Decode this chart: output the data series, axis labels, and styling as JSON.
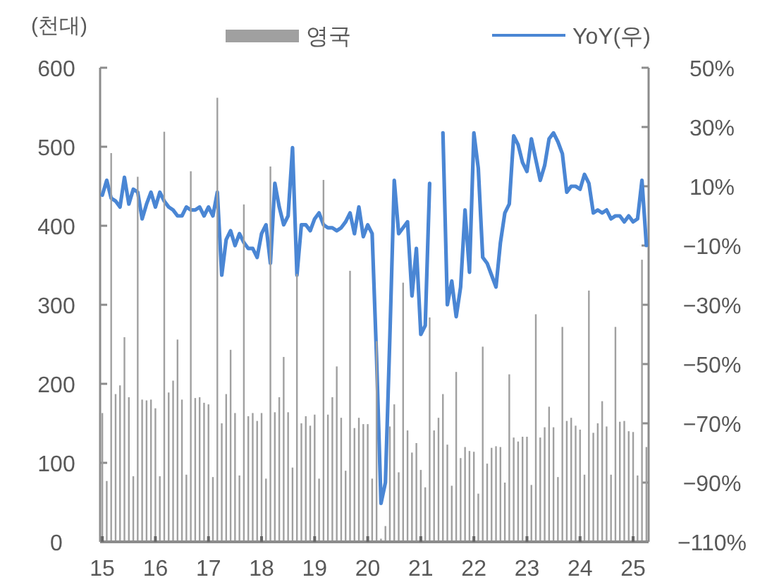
{
  "chart_data": {
    "type": "bar",
    "ylabel": "(천대)",
    "legend": "top",
    "grid": false,
    "x": [
      "2015-01",
      "2015-02",
      "2015-03",
      "2015-04",
      "2015-05",
      "2015-06",
      "2015-07",
      "2015-08",
      "2015-09",
      "2015-10",
      "2015-11",
      "2015-12",
      "2016-01",
      "2016-02",
      "2016-03",
      "2016-04",
      "2016-05",
      "2016-06",
      "2016-07",
      "2016-08",
      "2016-09",
      "2016-10",
      "2016-11",
      "2016-12",
      "2017-01",
      "2017-02",
      "2017-03",
      "2017-04",
      "2017-05",
      "2017-06",
      "2017-07",
      "2017-08",
      "2017-09",
      "2017-10",
      "2017-11",
      "2017-12",
      "2018-01",
      "2018-02",
      "2018-03",
      "2018-04",
      "2018-05",
      "2018-06",
      "2018-07",
      "2018-08",
      "2018-09",
      "2018-10",
      "2018-11",
      "2018-12",
      "2019-01",
      "2019-02",
      "2019-03",
      "2019-04",
      "2019-05",
      "2019-06",
      "2019-07",
      "2019-08",
      "2019-09",
      "2019-10",
      "2019-11",
      "2019-12",
      "2020-01",
      "2020-02",
      "2020-03",
      "2020-04",
      "2020-05",
      "2020-06",
      "2020-07",
      "2020-08",
      "2020-09",
      "2020-10",
      "2020-11",
      "2020-12",
      "2021-01",
      "2021-02",
      "2021-03",
      "2021-04",
      "2021-05",
      "2021-06",
      "2021-07",
      "2021-08",
      "2021-09",
      "2021-10",
      "2021-11",
      "2021-12",
      "2022-01",
      "2022-02",
      "2022-03",
      "2022-04",
      "2022-05",
      "2022-06",
      "2022-07",
      "2022-08",
      "2022-09",
      "2022-10",
      "2022-11",
      "2022-12",
      "2023-01",
      "2023-02",
      "2023-03",
      "2023-04",
      "2023-05",
      "2023-06",
      "2023-07",
      "2023-08",
      "2023-09",
      "2023-10",
      "2023-11",
      "2023-12",
      "2024-01",
      "2024-02",
      "2024-03",
      "2024-04",
      "2024-05",
      "2024-06",
      "2024-07",
      "2024-08",
      "2024-09",
      "2024-10",
      "2024-11",
      "2024-12",
      "2025-01",
      "2025-02",
      "2025-03",
      "2025-04"
    ],
    "xlim": [
      "2015-01",
      "2025-04"
    ],
    "xticks": [
      {
        "value": "2015-01",
        "label": "15"
      },
      {
        "value": "2016-01",
        "label": "16"
      },
      {
        "value": "2017-01",
        "label": "17"
      },
      {
        "value": "2018-01",
        "label": "18"
      },
      {
        "value": "2019-01",
        "label": "19"
      },
      {
        "value": "2020-01",
        "label": "20"
      },
      {
        "value": "2021-01",
        "label": "21"
      },
      {
        "value": "2022-01",
        "label": "22"
      },
      {
        "value": "2023-01",
        "label": "23"
      },
      {
        "value": "2024-01",
        "label": "24"
      },
      {
        "value": "2025-01",
        "label": "25"
      }
    ],
    "ylim": [
      0,
      600
    ],
    "yticks": [
      0,
      100,
      200,
      300,
      400,
      500,
      600
    ],
    "y2lim": [
      -110,
      50
    ],
    "y2ticks": [
      {
        "value": -110,
        "label": "−110%"
      },
      {
        "value": -90,
        "label": "−90%"
      },
      {
        "value": -70,
        "label": "−70%"
      },
      {
        "value": -50,
        "label": "−50%"
      },
      {
        "value": -30,
        "label": "−30%"
      },
      {
        "value": -10,
        "label": "−10%"
      },
      {
        "value": 10,
        "label": "10%"
      },
      {
        "value": 30,
        "label": "30%"
      },
      {
        "value": 50,
        "label": "50%"
      }
    ],
    "series": [
      {
        "name": "영국",
        "color": "#a0a0a0",
        "values": [
          163,
          77,
          492,
          187,
          198,
          259,
          183,
          83,
          462,
          180,
          179,
          180,
          169,
          83,
          519,
          189,
          204,
          256,
          180,
          85,
          469,
          182,
          183,
          176,
          174,
          82,
          562,
          150,
          187,
          243,
          163,
          84,
          427,
          159,
          163,
          153,
          163,
          80,
          475,
          164,
          183,
          234,
          164,
          94,
          339,
          150,
          159,
          147,
          161,
          80,
          458,
          161,
          183,
          222,
          157,
          90,
          343,
          144,
          157,
          149,
          149,
          80,
          254,
          4,
          20,
          146,
          174,
          88,
          328,
          141,
          113,
          125,
          91,
          69,
          284,
          141,
          157,
          187,
          123,
          71,
          215,
          106,
          120,
          115,
          114,
          61,
          247,
          99,
          119,
          121,
          120,
          75,
          212,
          132,
          127,
          133,
          133,
          72,
          288,
          132,
          145,
          171,
          145,
          82,
          272,
          153,
          157,
          147,
          142,
          85,
          318,
          138,
          150,
          178,
          146,
          85,
          272,
          152,
          153,
          140,
          139,
          84,
          357,
          120
        ]
      },
      {
        "name": "YoY(우)",
        "type": "line",
        "axis": "y2",
        "color": "#4a86d4",
        "values": [
          7,
          12,
          6,
          5,
          3,
          13,
          4,
          9,
          8,
          -1,
          4,
          8,
          3,
          8,
          5,
          3,
          2,
          0,
          0,
          3,
          2,
          2,
          3,
          0,
          3,
          0,
          8,
          -20,
          -8,
          -5,
          -10,
          -6,
          -9,
          -11,
          -11,
          -14,
          -6,
          -3,
          -16,
          11,
          3,
          -3,
          0,
          23,
          -20,
          -3,
          -3,
          -5,
          -1,
          1,
          -3,
          -4,
          -4,
          -5,
          -4,
          -2,
          1,
          -6,
          3,
          -7,
          -3,
          -6,
          -48,
          -97,
          -90,
          -41,
          12,
          -6,
          -4,
          -2,
          -27,
          -11,
          -40,
          -37,
          11,
          null,
          null,
          28,
          -30,
          -22,
          -34,
          -24,
          2,
          -19,
          28,
          16,
          -14,
          -16,
          -20,
          -24,
          -9,
          1,
          4,
          27,
          24,
          18,
          15,
          26,
          19,
          12,
          17,
          26,
          28,
          25,
          21,
          8,
          10,
          10,
          9,
          14,
          11,
          1,
          2,
          1,
          2,
          -1,
          0,
          0,
          -2,
          0,
          -2,
          -1,
          12,
          -10
        ]
      }
    ]
  }
}
